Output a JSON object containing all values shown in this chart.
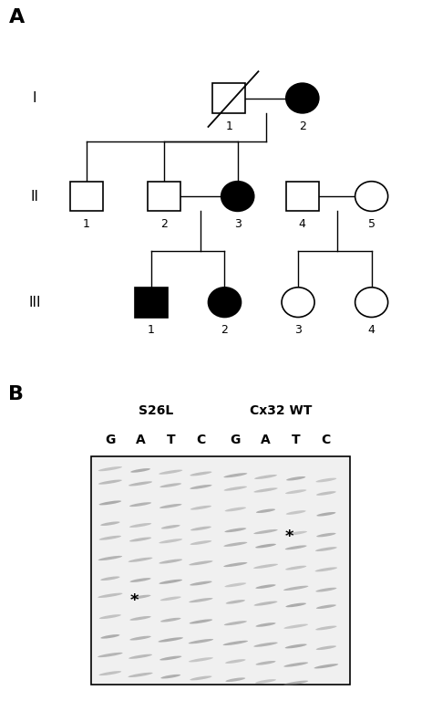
{
  "fig_width": 4.74,
  "fig_height": 7.68,
  "dpi": 100,
  "bg_color": "#ffffff",
  "gel_labels_S26L": "S26L",
  "gel_labels_Cx32": "Cx32 WT",
  "gel_lanes": [
    "G",
    "A",
    "T",
    "C",
    "G",
    "A",
    "T",
    "C"
  ]
}
